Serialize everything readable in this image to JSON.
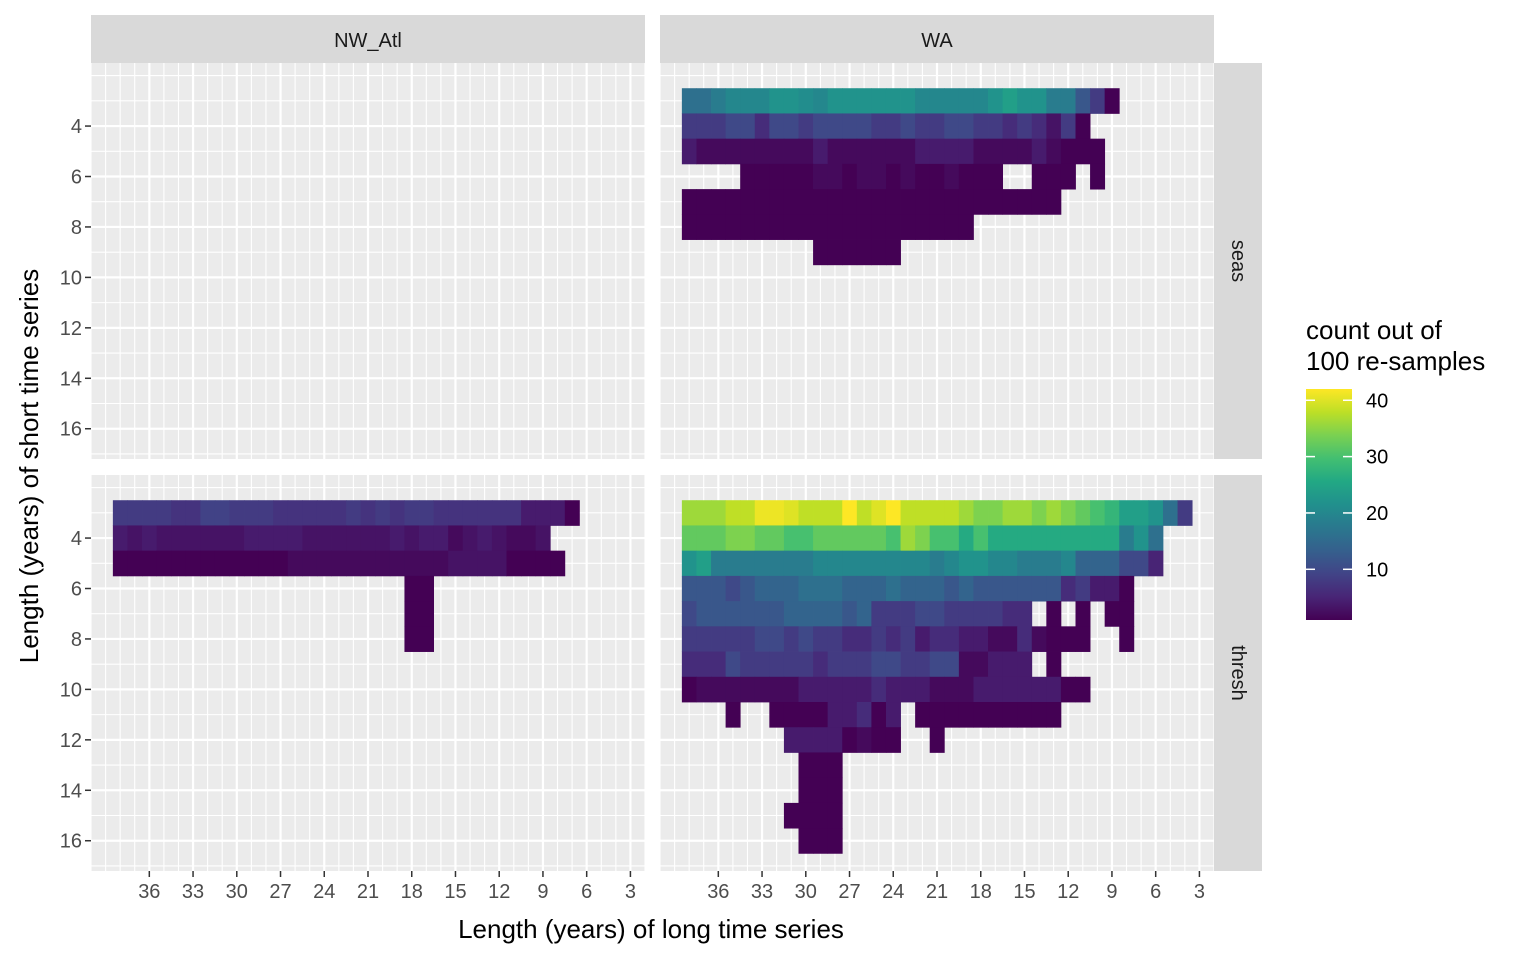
{
  "chart_data": {
    "type": "heatmap",
    "facet_cols": [
      "NW_Atl",
      "WA"
    ],
    "facet_rows": [
      "seas",
      "thresh"
    ],
    "xlabel": "Length (years) of long time series",
    "ylabel": "Length (years) of short time series",
    "x_reversed": true,
    "xlim": [
      2,
      40
    ],
    "ylim": [
      17.2,
      1.5
    ],
    "x_ticks": [
      36,
      33,
      30,
      27,
      24,
      21,
      18,
      15,
      12,
      9,
      6,
      3
    ],
    "y_ticks": [
      4,
      6,
      8,
      10,
      12,
      14,
      16
    ],
    "grid": true,
    "legend": {
      "title_lines": [
        "count out of",
        "100 re-samples"
      ],
      "colormap": "viridis",
      "min": 1,
      "max": 42,
      "ticks": [
        10,
        20,
        30,
        40
      ],
      "placement": "right"
    },
    "panels": [
      {
        "col": "NW_Atl",
        "row": "seas",
        "cells": []
      },
      {
        "col": "WA",
        "row": "seas",
        "rows": [
          {
            "y": 3,
            "x_from": 38,
            "values": [
              16,
              16,
              18,
              20,
              20,
              20,
              22,
              22,
              21,
              20,
              22,
              22,
              22,
              22,
              22,
              22,
              20,
              20,
              20,
              20,
              20,
              22,
              24,
              22,
              22,
              18,
              18,
              12,
              8,
              1
            ]
          },
          {
            "y": 4,
            "x_from": 38,
            "values": [
              8,
              8,
              8,
              10,
              10,
              6,
              10,
              10,
              8,
              10,
              10,
              10,
              10,
              8,
              8,
              10,
              8,
              8,
              10,
              10,
              8,
              8,
              6,
              8,
              6,
              3,
              8,
              1
            ]
          },
          {
            "y": 5,
            "x_from": 38,
            "values": [
              4,
              2,
              2,
              2,
              2,
              2,
              2,
              2,
              2,
              4,
              2,
              2,
              2,
              2,
              2,
              2,
              4,
              4,
              4,
              4,
              2,
              2,
              2,
              2,
              4,
              2,
              1,
              1,
              1
            ]
          },
          {
            "y": 6,
            "x_from": 34,
            "values": [
              1,
              1,
              1,
              1,
              1,
              2,
              2,
              1,
              2,
              2,
              1,
              2,
              1,
              1,
              2,
              1,
              1,
              1,
              null,
              null,
              1,
              1,
              1,
              null,
              1
            ]
          },
          {
            "y": 7,
            "x_from": 38,
            "values": [
              1,
              1,
              1,
              1,
              1,
              1,
              1,
              1,
              1,
              1,
              1,
              1,
              1,
              1,
              1,
              1,
              1,
              1,
              1,
              1,
              1,
              1,
              1,
              1,
              1,
              1
            ]
          },
          {
            "y": 8,
            "x_from": 38,
            "values": [
              1,
              1,
              1,
              1,
              1,
              1,
              1,
              1,
              1,
              1,
              1,
              1,
              1,
              1,
              1,
              1,
              1,
              1,
              1,
              1
            ]
          },
          {
            "y": 9,
            "x_from": 29,
            "values": [
              1,
              1,
              1,
              1,
              1,
              1
            ]
          }
        ]
      },
      {
        "col": "NW_Atl",
        "row": "thresh",
        "rows": [
          {
            "y": 3,
            "x_from": 38,
            "values": [
              8,
              8,
              8,
              8,
              7,
              7,
              9,
              9,
              8,
              8,
              8,
              7,
              7,
              7,
              7,
              7,
              8,
              7,
              8,
              7,
              8,
              8,
              7,
              7,
              7,
              7,
              7,
              7,
              4,
              4,
              4,
              1
            ]
          },
          {
            "y": 4,
            "x_from": 38,
            "values": [
              4,
              3,
              4,
              3,
              3,
              3,
              3,
              3,
              3,
              4,
              4,
              4,
              4,
              3,
              3,
              3,
              3,
              3,
              3,
              4,
              3,
              4,
              4,
              2,
              3,
              4,
              3,
              2,
              2,
              3
            ]
          },
          {
            "y": 5,
            "x_from": 38,
            "values": [
              1,
              1,
              1,
              1,
              1,
              1,
              1,
              1,
              1,
              1,
              1,
              1,
              2,
              2,
              2,
              2,
              2,
              2,
              2,
              2,
              2,
              2,
              2,
              3,
              3,
              3,
              3,
              1,
              1,
              1,
              1
            ]
          },
          {
            "y": 6,
            "x_from": 18,
            "values": [
              1,
              1
            ]
          },
          {
            "y": 7,
            "x_from": 18,
            "values": [
              1,
              1
            ]
          },
          {
            "y": 8,
            "x_from": 18,
            "values": [
              1,
              1
            ]
          }
        ]
      },
      {
        "col": "WA",
        "row": "thresh",
        "rows": [
          {
            "y": 3,
            "x_from": 38,
            "values": [
              36,
              36,
              36,
              38,
              38,
              41,
              41,
              40,
              38,
              38,
              38,
              42,
              38,
              40,
              42,
              38,
              38,
              38,
              38,
              36,
              34,
              34,
              36,
              36,
              34,
              36,
              34,
              32,
              30,
              28,
              24,
              24,
              22,
              16,
              8
            ]
          },
          {
            "y": 4,
            "x_from": 38,
            "values": [
              32,
              32,
              32,
              34,
              34,
              32,
              32,
              30,
              30,
              32,
              32,
              32,
              32,
              32,
              30,
              36,
              34,
              30,
              30,
              26,
              30,
              26,
              26,
              26,
              26,
              26,
              26,
              26,
              26,
              26,
              18,
              22,
              16
            ]
          },
          {
            "y": 5,
            "x_from": 38,
            "values": [
              22,
              24,
              18,
              18,
              18,
              18,
              18,
              18,
              18,
              20,
              20,
              20,
              20,
              20,
              20,
              20,
              20,
              18,
              20,
              22,
              22,
              20,
              20,
              18,
              18,
              18,
              20,
              14,
              14,
              14,
              10,
              10,
              5
            ]
          },
          {
            "y": 6,
            "x_from": 38,
            "values": [
              12,
              12,
              12,
              10,
              12,
              14,
              14,
              14,
              16,
              16,
              16,
              14,
              14,
              14,
              16,
              14,
              14,
              14,
              12,
              14,
              12,
              12,
              12,
              12,
              12,
              12,
              6,
              8,
              4,
              4,
              1
            ]
          },
          {
            "y": 7,
            "x_from": 38,
            "values": [
              10,
              12,
              12,
              12,
              12,
              12,
              12,
              14,
              14,
              14,
              14,
              12,
              14,
              8,
              8,
              8,
              10,
              10,
              8,
              8,
              8,
              8,
              6,
              6,
              null,
              1,
              null,
              1,
              null,
              1,
              1
            ]
          },
          {
            "y": 8,
            "x_from": 38,
            "values": [
              8,
              8,
              8,
              8,
              8,
              10,
              10,
              8,
              10,
              8,
              8,
              6,
              6,
              8,
              6,
              8,
              4,
              6,
              6,
              4,
              4,
              2,
              2,
              6,
              2,
              1,
              1,
              1,
              null,
              null,
              1
            ]
          },
          {
            "y": 9,
            "x_from": 38,
            "values": [
              6,
              6,
              6,
              10,
              8,
              8,
              8,
              8,
              8,
              6,
              8,
              8,
              8,
              10,
              10,
              8,
              8,
              10,
              10,
              2,
              2,
              4,
              4,
              4,
              null,
              1
            ]
          },
          {
            "y": 10,
            "x_from": 38,
            "values": [
              1,
              2,
              2,
              2,
              2,
              2,
              2,
              2,
              4,
              4,
              4,
              4,
              4,
              6,
              4,
              4,
              4,
              2,
              2,
              2,
              4,
              4,
              4,
              4,
              4,
              4,
              1,
              1
            ]
          },
          {
            "y": 11,
            "x_from": 35,
            "values": [
              1,
              null,
              null,
              1,
              1,
              1,
              1,
              4,
              4,
              6,
              1,
              4,
              null,
              1,
              1,
              1,
              1,
              1,
              1,
              1,
              1,
              1,
              1
            ]
          },
          {
            "y": 12,
            "x_from": 31,
            "values": [
              4,
              4,
              4,
              4,
              1,
              2,
              1,
              1,
              null,
              null,
              1
            ]
          },
          {
            "y": 13,
            "x_from": 30,
            "values": [
              1,
              1,
              1
            ]
          },
          {
            "y": 14,
            "x_from": 30,
            "values": [
              1,
              1,
              1
            ]
          },
          {
            "y": 15,
            "x_from": 31,
            "values": [
              1,
              1,
              1,
              1
            ]
          },
          {
            "y": 16,
            "x_from": 30,
            "values": [
              1,
              1,
              1
            ]
          }
        ]
      }
    ]
  }
}
